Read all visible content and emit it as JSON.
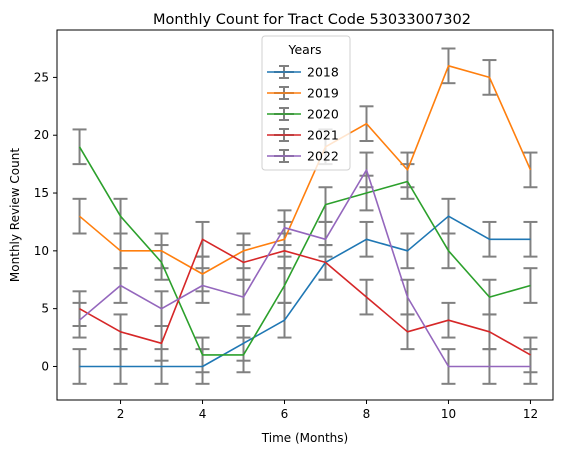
{
  "chart_data": {
    "type": "line",
    "title": "Monthly Count for Tract Code 53033007302",
    "xlabel": "Time (Months)",
    "ylabel": "Monthly Review Count",
    "x": [
      1,
      2,
      3,
      4,
      5,
      6,
      7,
      8,
      9,
      10,
      11,
      12
    ],
    "xlim": [
      0.45,
      12.55
    ],
    "ylim": [
      -2.9,
      29.1
    ],
    "x_ticks": [
      2,
      4,
      6,
      8,
      10,
      12
    ],
    "y_ticks": [
      0,
      5,
      10,
      15,
      20,
      25
    ],
    "grid": false,
    "legend": {
      "title": "Years",
      "placement": "top-center"
    },
    "error_bar": 1.5,
    "error_bar_color": "#808080",
    "series": [
      {
        "name": "2018",
        "color": "#1f77b4",
        "values": [
          0,
          0,
          0,
          0,
          2,
          4,
          9,
          11,
          10,
          13,
          11,
          11
        ]
      },
      {
        "name": "2019",
        "color": "#ff7f0e",
        "values": [
          13,
          10,
          10,
          8,
          10,
          11,
          19,
          21,
          17,
          26,
          25,
          17
        ]
      },
      {
        "name": "2020",
        "color": "#2ca02c",
        "values": [
          19,
          13,
          9,
          1,
          1,
          7,
          14,
          15,
          16,
          10,
          6,
          7
        ]
      },
      {
        "name": "2021",
        "color": "#d62728",
        "values": [
          5,
          3,
          2,
          11,
          9,
          10,
          9,
          6,
          3,
          4,
          3,
          1
        ]
      },
      {
        "name": "2022",
        "color": "#9467bd",
        "values": [
          4,
          7,
          5,
          7,
          6,
          12,
          11,
          17,
          6,
          0,
          0,
          0
        ]
      }
    ]
  }
}
